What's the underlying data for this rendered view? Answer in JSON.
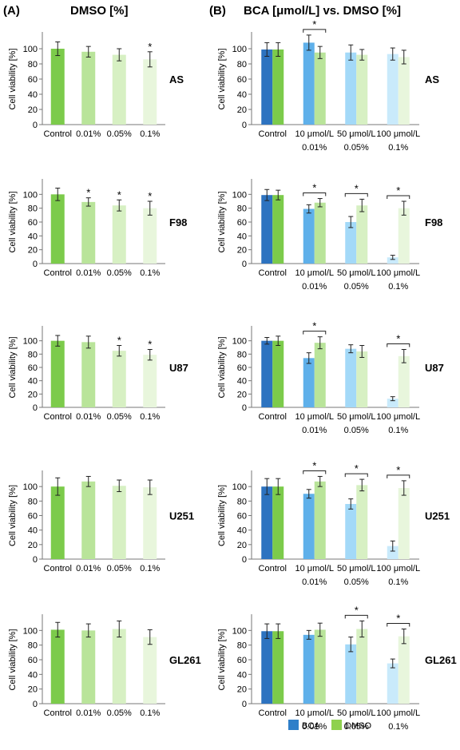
{
  "panels": {
    "left": {
      "label": "(A)",
      "title": "DMSO [%]"
    },
    "right": {
      "label": "(B)",
      "title": "BCA [μmol/L] vs. DMSO [%]"
    }
  },
  "legend": [
    {
      "name": "BCA",
      "color": "#2f7fc9"
    },
    {
      "name": "DMSO",
      "color": "#8fd14f"
    }
  ],
  "colors": {
    "control_bca": "#2d73c0",
    "control_dmso": "#7ccb4b",
    "bca_shades": [
      "#5fb0ea",
      "#a3d9f8",
      "#c9eafb"
    ],
    "dmso_shades": [
      "#b9e49a",
      "#d7f0c3",
      "#e8f6dc"
    ]
  },
  "chart_data": [
    {
      "type": "bar",
      "panel": "A",
      "cell_line": "AS",
      "ylabel": "Cell viability [%]",
      "ylim": [
        0,
        120
      ],
      "yticks": [
        0,
        20,
        40,
        60,
        80,
        100
      ],
      "categories": [
        "Control",
        "0.01%",
        "0.05%",
        "0.1%"
      ],
      "series": [
        {
          "values": [
            100,
            96,
            92,
            86
          ],
          "errors": [
            9,
            7,
            8,
            10
          ],
          "significant": [
            false,
            false,
            false,
            true
          ]
        }
      ]
    },
    {
      "type": "bar",
      "panel": "A",
      "cell_line": "F98",
      "ylabel": "Cell viability [%]",
      "ylim": [
        0,
        120
      ],
      "yticks": [
        0,
        20,
        40,
        60,
        80,
        100
      ],
      "categories": [
        "Control",
        "0.01%",
        "0.05%",
        "0.1%"
      ],
      "series": [
        {
          "values": [
            100,
            89,
            84,
            80
          ],
          "errors": [
            9,
            6,
            8,
            10
          ],
          "significant": [
            false,
            true,
            true,
            true
          ]
        }
      ]
    },
    {
      "type": "bar",
      "panel": "A",
      "cell_line": "U87",
      "ylabel": "Cell viability [%]",
      "ylim": [
        0,
        120
      ],
      "yticks": [
        0,
        20,
        40,
        60,
        80,
        100
      ],
      "categories": [
        "Control",
        "0.01%",
        "0.05%",
        "0.1%"
      ],
      "series": [
        {
          "values": [
            100,
            98,
            85,
            79
          ],
          "errors": [
            8,
            9,
            8,
            8
          ],
          "significant": [
            false,
            false,
            true,
            true
          ]
        }
      ]
    },
    {
      "type": "bar",
      "panel": "A",
      "cell_line": "U251",
      "ylabel": "Cell viability [%]",
      "ylim": [
        0,
        120
      ],
      "yticks": [
        0,
        20,
        40,
        60,
        80,
        100
      ],
      "categories": [
        "Control",
        "0.01%",
        "0.05%",
        "0.1%"
      ],
      "series": [
        {
          "values": [
            100,
            107,
            101,
            99
          ],
          "errors": [
            12,
            7,
            8,
            10
          ],
          "significant": [
            false,
            false,
            false,
            false
          ]
        }
      ]
    },
    {
      "type": "bar",
      "panel": "A",
      "cell_line": "GL261",
      "ylabel": "Cell viability [%]",
      "ylim": [
        0,
        120
      ],
      "yticks": [
        0,
        20,
        40,
        60,
        80,
        100
      ],
      "categories": [
        "Control",
        "0.01%",
        "0.05%",
        "0.1%"
      ],
      "series": [
        {
          "values": [
            101,
            100,
            102,
            91
          ],
          "errors": [
            10,
            9,
            11,
            10
          ],
          "significant": [
            false,
            false,
            false,
            false
          ]
        }
      ]
    },
    {
      "type": "bar",
      "panel": "B",
      "cell_line": "AS",
      "ylabel": "Cell viability [%]",
      "ylim": [
        0,
        120
      ],
      "yticks": [
        0,
        20,
        40,
        60,
        80,
        100
      ],
      "categories": [
        "Control",
        "10 μmol/L",
        "50 μmol/L",
        "100 μmol/L"
      ],
      "subcategories": [
        "",
        "0.01%",
        "0.05%",
        "0.1%"
      ],
      "series": [
        {
          "name": "BCA",
          "values": [
            99,
            108,
            95,
            93
          ],
          "errors": [
            9,
            10,
            10,
            8
          ]
        },
        {
          "name": "DMSO",
          "values": [
            99,
            95,
            92,
            89
          ],
          "errors": [
            9,
            8,
            7,
            9
          ]
        }
      ],
      "significance": [
        false,
        true,
        false,
        false
      ]
    },
    {
      "type": "bar",
      "panel": "B",
      "cell_line": "F98",
      "ylabel": "Cell viability [%]",
      "ylim": [
        0,
        120
      ],
      "yticks": [
        0,
        20,
        40,
        60,
        80,
        100
      ],
      "categories": [
        "Control",
        "10 μmol/L",
        "50 μmol/L",
        "100 μmol/L"
      ],
      "subcategories": [
        "",
        "0.01%",
        "0.05%",
        "0.1%"
      ],
      "series": [
        {
          "name": "BCA",
          "values": [
            99,
            79,
            60,
            9
          ],
          "errors": [
            8,
            6,
            8,
            3
          ]
        },
        {
          "name": "DMSO",
          "values": [
            99,
            88,
            84,
            80
          ],
          "errors": [
            7,
            6,
            9,
            10
          ]
        }
      ],
      "significance": [
        false,
        true,
        true,
        true
      ]
    },
    {
      "type": "bar",
      "panel": "B",
      "cell_line": "U87",
      "ylabel": "Cell viability [%]",
      "ylim": [
        0,
        120
      ],
      "yticks": [
        0,
        20,
        40,
        60,
        80,
        100
      ],
      "categories": [
        "Control",
        "10 μmol/L",
        "50 μmol/L",
        "100 μmol/L"
      ],
      "subcategories": [
        "",
        "0.01%",
        "0.05%",
        "0.1%"
      ],
      "series": [
        {
          "name": "BCA",
          "values": [
            100,
            74,
            88,
            13
          ],
          "errors": [
            5,
            8,
            6,
            3
          ]
        },
        {
          "name": "DMSO",
          "values": [
            100,
            97,
            84,
            77
          ],
          "errors": [
            7,
            9,
            9,
            10
          ]
        }
      ],
      "significance": [
        false,
        true,
        false,
        true
      ]
    },
    {
      "type": "bar",
      "panel": "B",
      "cell_line": "U251",
      "ylabel": "Cell viability [%]",
      "ylim": [
        0,
        120
      ],
      "yticks": [
        0,
        20,
        40,
        60,
        80,
        100
      ],
      "categories": [
        "Control",
        "10 μmol/L",
        "50 μmol/L",
        "100 μmol/L"
      ],
      "subcategories": [
        "",
        "0.01%",
        "0.05%",
        "0.1%"
      ],
      "series": [
        {
          "name": "BCA",
          "values": [
            100,
            90,
            76,
            18
          ],
          "errors": [
            11,
            6,
            7,
            7
          ]
        },
        {
          "name": "DMSO",
          "values": [
            100,
            107,
            102,
            98
          ],
          "errors": [
            11,
            7,
            8,
            10
          ]
        }
      ],
      "significance": [
        false,
        true,
        true,
        true
      ]
    },
    {
      "type": "bar",
      "panel": "B",
      "cell_line": "GL261",
      "ylabel": "Cell viability [%]",
      "ylim": [
        0,
        120
      ],
      "yticks": [
        0,
        20,
        40,
        60,
        80,
        100
      ],
      "categories": [
        "Control",
        "10 μmol/L",
        "50 μmol/L",
        "100 μmol/L"
      ],
      "subcategories": [
        "",
        "0.01%",
        "0.05%",
        "0.1%"
      ],
      "series": [
        {
          "name": "BCA",
          "values": [
            99,
            94,
            81,
            55
          ],
          "errors": [
            10,
            6,
            10,
            6
          ]
        },
        {
          "name": "DMSO",
          "values": [
            99,
            101,
            102,
            92
          ],
          "errors": [
            10,
            9,
            11,
            10
          ]
        }
      ],
      "significance": [
        false,
        false,
        true,
        true
      ]
    }
  ]
}
